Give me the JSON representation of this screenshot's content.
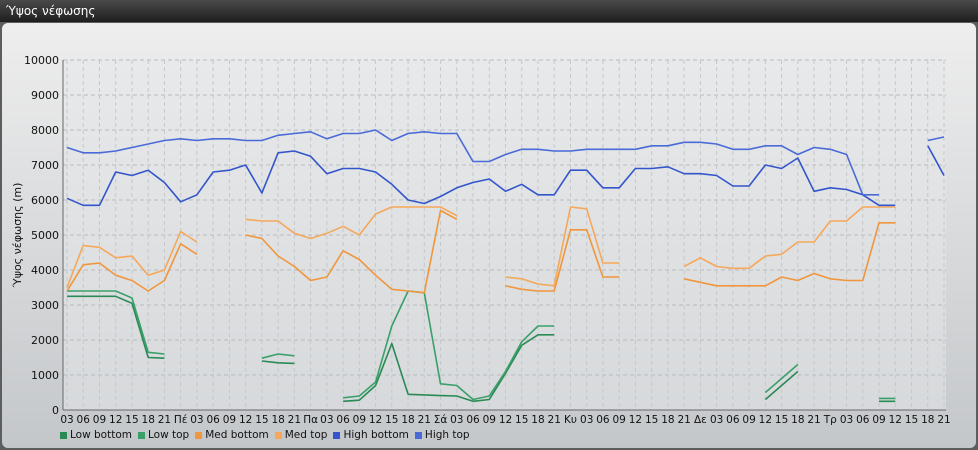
{
  "window": {
    "title": "Ύψος νέφωσης"
  },
  "chart_data": {
    "type": "line",
    "title": "",
    "xlabel": "",
    "ylabel": "Ύψος νέφωσης (m)",
    "ylim": [
      0,
      10000
    ],
    "yticks": [
      0,
      1000,
      2000,
      3000,
      4000,
      5000,
      6000,
      7000,
      8000,
      9000,
      10000
    ],
    "grid": true,
    "legend_position": "bottom-left",
    "x": [
      "03",
      "06",
      "09",
      "12",
      "15",
      "18",
      "21",
      "Πέ",
      "03",
      "06",
      "09",
      "12",
      "15",
      "18",
      "21",
      "Πα",
      "03",
      "06",
      "09",
      "12",
      "15",
      "18",
      "21",
      "Σά",
      "03",
      "06",
      "09",
      "12",
      "15",
      "18",
      "21",
      "Κυ",
      "03",
      "06",
      "09",
      "12",
      "15",
      "18",
      "21",
      "Δε",
      "03",
      "06",
      "09",
      "12",
      "15",
      "18",
      "21",
      "Τρ",
      "03",
      "06",
      "09",
      "12",
      "15",
      "18",
      "21"
    ],
    "series": [
      {
        "name": "Low bottom",
        "color": "#2a8a55",
        "values": [
          3250,
          3250,
          3250,
          3250,
          3050,
          1500,
          1480,
          null,
          null,
          null,
          null,
          null,
          1400,
          1350,
          1330,
          null,
          null,
          250,
          280,
          700,
          1900,
          450,
          430,
          410,
          400,
          250,
          300,
          1050,
          1850,
          2150,
          2150,
          null,
          null,
          null,
          null,
          null,
          null,
          null,
          1500,
          null,
          null,
          null,
          null,
          300,
          700,
          1100,
          null,
          null,
          null,
          null,
          250,
          250,
          null,
          null,
          null
        ]
      },
      {
        "name": "Low top",
        "color": "#3aa06a",
        "values": [
          3400,
          3400,
          3400,
          3400,
          3200,
          1650,
          1600,
          null,
          null,
          null,
          null,
          null,
          1480,
          1600,
          1550,
          null,
          null,
          350,
          400,
          800,
          2400,
          3400,
          3350,
          750,
          700,
          300,
          400,
          1100,
          1950,
          2400,
          2400,
          null,
          null,
          null,
          null,
          null,
          null,
          null,
          1750,
          null,
          null,
          null,
          null,
          500,
          900,
          1300,
          null,
          null,
          null,
          null,
          330,
          330,
          null,
          null,
          null
        ]
      },
      {
        "name": "Med bottom",
        "color": "#f0963c",
        "values": [
          3400,
          4150,
          4200,
          3850,
          3700,
          3400,
          3700,
          4750,
          4450,
          null,
          null,
          5000,
          4900,
          4400,
          4100,
          3700,
          3800,
          4550,
          4300,
          3850,
          3450,
          3400,
          3350,
          5700,
          5450,
          null,
          null,
          3550,
          3450,
          3400,
          3400,
          5150,
          5150,
          3800,
          3800,
          null,
          null,
          null,
          3750,
          3650,
          3550,
          3550,
          3550,
          3550,
          3800,
          3700,
          3900,
          3750,
          3700,
          3700,
          5350,
          5350,
          null,
          null,
          null
        ]
      },
      {
        "name": "Med top",
        "color": "#f5a85a",
        "values": [
          3500,
          4700,
          4650,
          4350,
          4400,
          3850,
          4000,
          5100,
          4800,
          null,
          null,
          5450,
          5400,
          5400,
          5050,
          4900,
          5050,
          5250,
          5000,
          5600,
          5800,
          5800,
          5800,
          5800,
          5550,
          null,
          null,
          3800,
          3750,
          3600,
          3550,
          5800,
          5750,
          4200,
          4200,
          null,
          null,
          null,
          4100,
          4350,
          4100,
          4050,
          4050,
          4400,
          4450,
          4800,
          4800,
          5400,
          5400,
          5800,
          5800,
          5800,
          null,
          null,
          null
        ]
      },
      {
        "name": "High bottom",
        "color": "#3355cc",
        "values": [
          6050,
          5850,
          5850,
          6800,
          6700,
          6850,
          6500,
          5950,
          6150,
          6800,
          6850,
          7000,
          6200,
          7350,
          7400,
          7250,
          6750,
          6900,
          6900,
          6800,
          6450,
          6000,
          5900,
          6100,
          6350,
          6500,
          6600,
          6250,
          6450,
          6150,
          6150,
          6850,
          6850,
          6350,
          6350,
          6900,
          6900,
          6950,
          6750,
          6750,
          6700,
          6400,
          6400,
          7000,
          6900,
          7200,
          6250,
          6350,
          6300,
          6150,
          5850,
          5850,
          null,
          7550,
          6700
        ]
      },
      {
        "name": "High top",
        "color": "#4a6ad8",
        "values": [
          7500,
          7350,
          7350,
          7400,
          7500,
          7600,
          7700,
          7750,
          7700,
          7750,
          7750,
          7700,
          7700,
          7850,
          7900,
          7950,
          7750,
          7900,
          7900,
          8000,
          7700,
          7900,
          7950,
          7900,
          7900,
          7100,
          7100,
          7300,
          7450,
          7450,
          7400,
          7400,
          7450,
          7450,
          7450,
          7450,
          7550,
          7550,
          7650,
          7650,
          7600,
          7450,
          7450,
          7550,
          7550,
          7300,
          7500,
          7450,
          7300,
          6150,
          6150,
          null,
          null,
          7700,
          7800
        ]
      }
    ]
  }
}
